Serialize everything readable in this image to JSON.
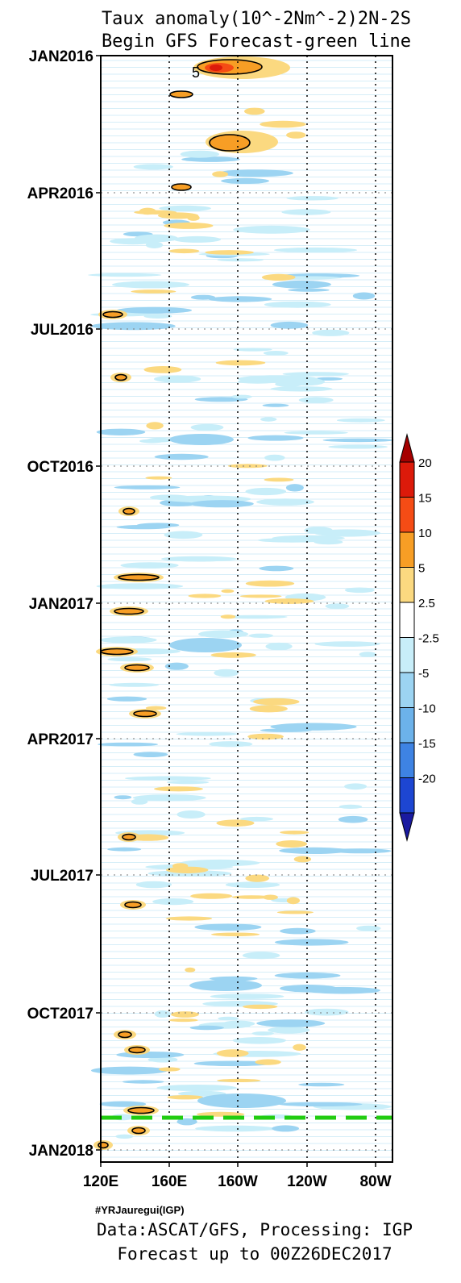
{
  "chart_data": {
    "type": "heatmap",
    "title": "Taux anomaly(10^-2Nm^-2)2N-2S",
    "subtitle": "Begin GFS Forecast-green line",
    "x_axis": {
      "ticks": [
        "120E",
        "160E",
        "160W",
        "120W",
        "80W"
      ],
      "range": [
        "120E",
        "80W"
      ]
    },
    "y_axis": {
      "ticks": [
        "JAN2016",
        "APR2016",
        "JUL2016",
        "OCT2016",
        "JAN2017",
        "APR2017",
        "JUL2017",
        "OCT2017",
        "JAN2018"
      ],
      "range": [
        "JAN2016",
        "JAN2018"
      ]
    },
    "colorbar": {
      "labels": [
        "20",
        "15",
        "10",
        "5",
        "2.5",
        "-2.5",
        "-5",
        "-10",
        "-15",
        "-20"
      ],
      "colors": [
        "#a50000",
        "#dc1a0a",
        "#f54c15",
        "#f79e25",
        "#fbd980",
        "#ffffff",
        "#c8eef9",
        "#9cd4f2",
        "#6cb2ea",
        "#3e83e3",
        "#1d46d2",
        "#1a1aa0"
      ]
    },
    "contour_label": "5",
    "forecast_line": {
      "date": "00Z26DEC2017",
      "color": "#22cc11"
    },
    "footer": {
      "credit": "#YRJauregui(IGP)",
      "data_line": "Data:ASCAT/GFS, Processing: IGP",
      "forecast_line": "Forecast up to 00Z26DEC2017"
    }
  }
}
